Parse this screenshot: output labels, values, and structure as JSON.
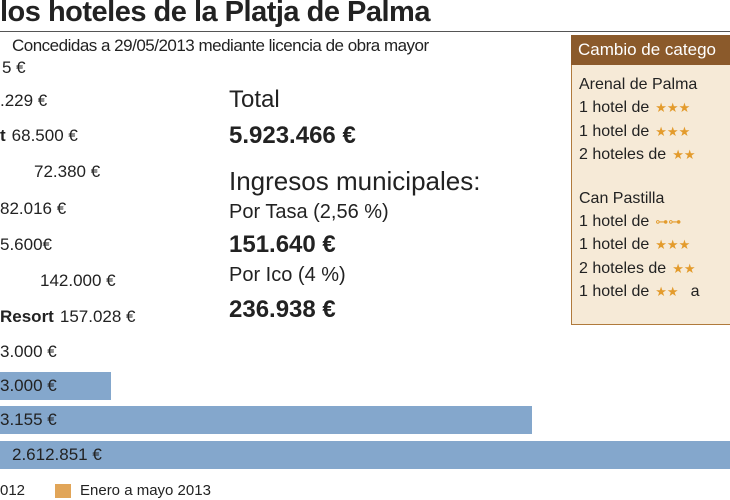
{
  "header": {
    "title": "los hoteles de la Platja de Palma",
    "subtitle": "Concedidas a 29/05/2013 mediante licencia de obra mayor"
  },
  "rows": [
    {
      "bold": "",
      "text": "5 €"
    },
    {
      "bold": "",
      "text": ".229 €"
    },
    {
      "bold": "t",
      "text": "68.500 €"
    },
    {
      "bold": "",
      "text": "72.380 €"
    },
    {
      "bold": "",
      "text": "82.016 €"
    },
    {
      "bold": "",
      "text": "5.600€"
    },
    {
      "bold": "",
      "text": "142.000 €"
    },
    {
      "bold": "Resort",
      "text": "157.028 €"
    },
    {
      "bold": "",
      "text": "3.000 €"
    },
    {
      "bold": "",
      "text": "3.000 €"
    },
    {
      "bold": "",
      "text": "3.155 €"
    },
    {
      "bold": "",
      "text": "2.612.851 €"
    }
  ],
  "summary": {
    "total_label": "Total",
    "total": "5.923.466 €",
    "income_title": "Ingresos municipales:",
    "tasa_label": "Por Tasa (2,56 %)",
    "tasa": "151.640 €",
    "ico_label": "Por Ico (4 %)",
    "ico": "236.938 €"
  },
  "box": {
    "title": "Cambio de catego",
    "groups": [
      {
        "name": "Arenal de Palma",
        "lines": [
          {
            "text": "1 hotel de",
            "stars": "★★★"
          },
          {
            "text": "1 hotel de",
            "stars": "★★★"
          },
          {
            "text": "2 hoteles de",
            "stars": "★★"
          }
        ]
      },
      {
        "name": "Can Pastilla",
        "lines": [
          {
            "text": "1 hotel de",
            "stars": "⊶⊶"
          },
          {
            "text": "1 hotel de",
            "stars": "★★★"
          },
          {
            "text": "2 hoteles de",
            "stars": "★★"
          },
          {
            "text": "1 hotel de",
            "stars": "★★",
            "tail": "a"
          }
        ]
      }
    ]
  },
  "legend": {
    "items": [
      "012",
      "Enero a mayo 2013"
    ]
  }
}
